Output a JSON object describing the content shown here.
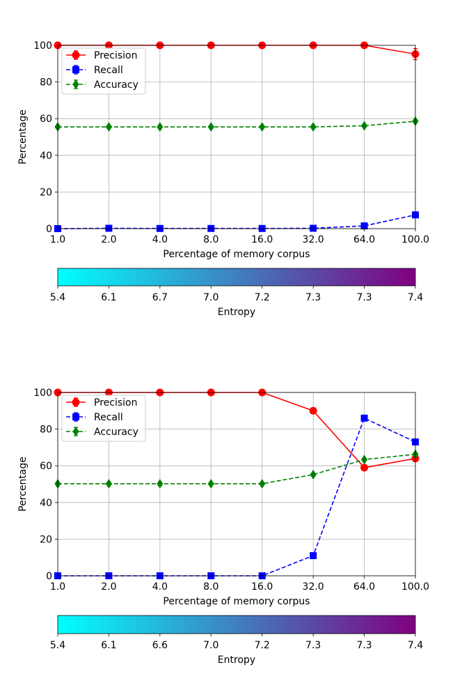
{
  "chart_data": [
    {
      "type": "line",
      "xlabel": "Percentage of memory corpus",
      "ylabel": "Percentage",
      "x_tick_labels": [
        "1.0",
        "2.0",
        "4.0",
        "8.0",
        "16.0",
        "32.0",
        "64.0",
        "100.0"
      ],
      "ylim": [
        0,
        100
      ],
      "y_ticks": [
        "0",
        "20",
        "40",
        "60",
        "80",
        "100"
      ],
      "grid": true,
      "legend_position": "top-left",
      "series": [
        {
          "name": "Precision",
          "color": "#ff0000",
          "marker": "circle",
          "dash": "solid",
          "values": [
            100,
            100,
            100,
            100,
            100,
            100,
            100,
            95.2
          ],
          "err": [
            0,
            0,
            0,
            0,
            0,
            0,
            0,
            3
          ]
        },
        {
          "name": "Recall",
          "color": "#0000ff",
          "marker": "square",
          "dash": "dashed",
          "values": [
            0,
            0.2,
            0.1,
            0.1,
            0.1,
            0.2,
            1.5,
            7.5
          ],
          "err": [
            0,
            0,
            0,
            0,
            0,
            0,
            0,
            0
          ]
        },
        {
          "name": "Accuracy",
          "color": "#008000",
          "marker": "diamond",
          "dash": "dashed",
          "values": [
            55.5,
            55.5,
            55.5,
            55.5,
            55.5,
            55.5,
            56.1,
            58.6
          ],
          "err": [
            0,
            0,
            0,
            0,
            0,
            0,
            0,
            0
          ]
        }
      ],
      "colorbar": {
        "label": "Entropy",
        "tick_labels": [
          "5.4",
          "6.1",
          "6.7",
          "7.0",
          "7.2",
          "7.3",
          "7.3",
          "7.4"
        ],
        "color_start": "#00ffff",
        "color_end": "#800080"
      }
    },
    {
      "type": "line",
      "xlabel": "Percentage of memory corpus",
      "ylabel": "Percentage",
      "x_tick_labels": [
        "1.0",
        "2.0",
        "4.0",
        "8.0",
        "16.0",
        "32.0",
        "64.0",
        "100.0"
      ],
      "ylim": [
        0,
        100
      ],
      "y_ticks": [
        "0",
        "20",
        "40",
        "60",
        "80",
        "100"
      ],
      "grid": true,
      "legend_position": "top-left",
      "series": [
        {
          "name": "Precision",
          "color": "#ff0000",
          "marker": "circle",
          "dash": "solid",
          "values": [
            100,
            100,
            100,
            100,
            100,
            90,
            59,
            64
          ],
          "err": [
            0,
            0,
            0,
            0,
            0,
            0,
            0,
            0
          ]
        },
        {
          "name": "Recall",
          "color": "#0000ff",
          "marker": "square",
          "dash": "dashed",
          "values": [
            0,
            0,
            0,
            0,
            0,
            11,
            86,
            73
          ],
          "err": [
            0,
            0,
            0,
            0,
            0,
            0,
            0,
            0
          ]
        },
        {
          "name": "Accuracy",
          "color": "#008000",
          "marker": "diamond",
          "dash": "dashed",
          "values": [
            50.2,
            50.2,
            50.2,
            50.2,
            50.2,
            55.2,
            63.4,
            66.3
          ],
          "err": [
            0,
            0,
            0,
            0,
            0,
            0,
            0,
            0
          ]
        }
      ],
      "colorbar": {
        "label": "Entropy",
        "tick_labels": [
          "5.4",
          "6.1",
          "6.6",
          "7.0",
          "7.2",
          "7.3",
          "7.3",
          "7.4"
        ],
        "color_start": "#00ffff",
        "color_end": "#800080"
      }
    }
  ]
}
